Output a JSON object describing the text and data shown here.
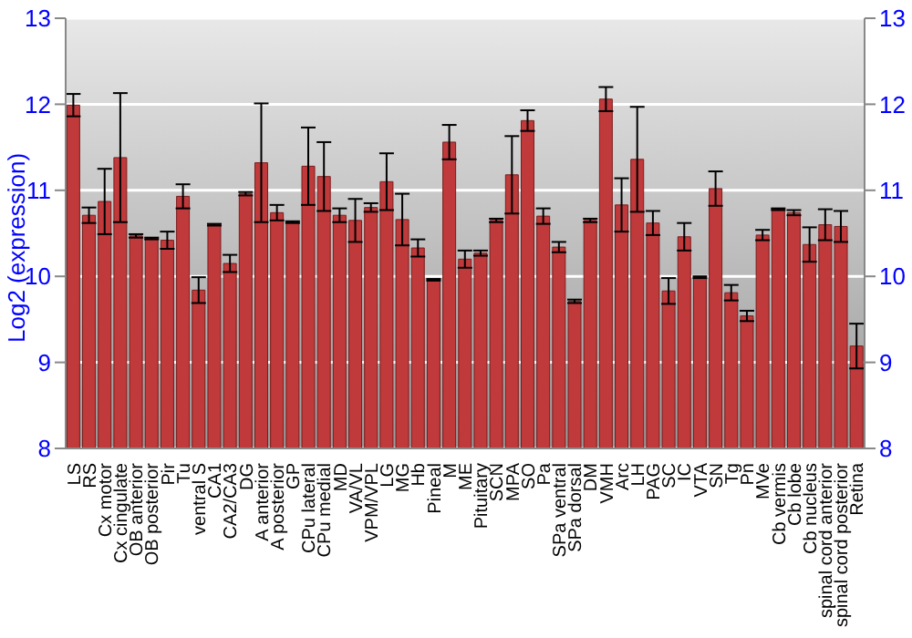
{
  "chart_data": {
    "type": "bar",
    "ylabel": "Log2 (expression)",
    "categories": [
      "LS",
      "RS",
      "Cx motor",
      "Cx cingulate",
      "OB anterior",
      "OB posterior",
      "Pir",
      "Tu",
      "ventral S",
      "CA1",
      "CA2/CA3",
      "DG",
      "A anterior",
      "A posterior",
      "GP",
      "CPu lateral",
      "CPu medial",
      "MD",
      "VA/VL",
      "VPM/VPL",
      "LG",
      "MG",
      "Hb",
      "Pineal",
      "M",
      "ME",
      "Pituitary",
      "SCN",
      "MPA",
      "SO",
      "Pa",
      "SPa ventral",
      "SPa dorsal",
      "DM",
      "VMH",
      "Arc",
      "LH",
      "PAG",
      "SC",
      "IC",
      "VTA",
      "SN",
      "Tg",
      "Pn",
      "MVe",
      "Cb vermis",
      "Cb lobe",
      "Cb nucleus",
      "spinal cord anterior",
      "spinal cord posterior",
      "Retina"
    ],
    "values": [
      11.99,
      10.71,
      10.87,
      11.38,
      10.47,
      10.44,
      10.42,
      10.93,
      9.84,
      10.6,
      10.15,
      10.96,
      11.32,
      10.74,
      10.63,
      11.28,
      11.16,
      10.71,
      10.65,
      10.8,
      11.1,
      10.66,
      10.33,
      9.96,
      11.56,
      10.2,
      10.27,
      10.65,
      11.18,
      11.81,
      10.7,
      10.34,
      9.71,
      10.65,
      12.06,
      10.83,
      11.36,
      10.62,
      9.83,
      10.46,
      9.99,
      11.02,
      9.81,
      9.54,
      10.48,
      10.78,
      10.74,
      10.37,
      10.6,
      10.58,
      9.19
    ],
    "errors": [
      0.13,
      0.09,
      0.38,
      0.75,
      0.02,
      0.01,
      0.1,
      0.14,
      0.15,
      0.01,
      0.1,
      0.02,
      0.69,
      0.09,
      0.01,
      0.45,
      0.4,
      0.08,
      0.25,
      0.05,
      0.33,
      0.3,
      0.1,
      0.01,
      0.2,
      0.1,
      0.03,
      0.02,
      0.45,
      0.12,
      0.09,
      0.06,
      0.02,
      0.02,
      0.14,
      0.31,
      0.61,
      0.14,
      0.15,
      0.16,
      0.01,
      0.2,
      0.09,
      0.06,
      0.06,
      0.01,
      0.03,
      0.2,
      0.18,
      0.18,
      0.26
    ],
    "color": "#c0393b",
    "ylim": [
      8,
      13
    ],
    "yticks": [
      8,
      9,
      10,
      11,
      12,
      13
    ],
    "y2lim": [
      8,
      13
    ],
    "y2ticks": [
      8,
      9,
      10,
      11,
      12,
      13
    ],
    "grid": "y"
  }
}
